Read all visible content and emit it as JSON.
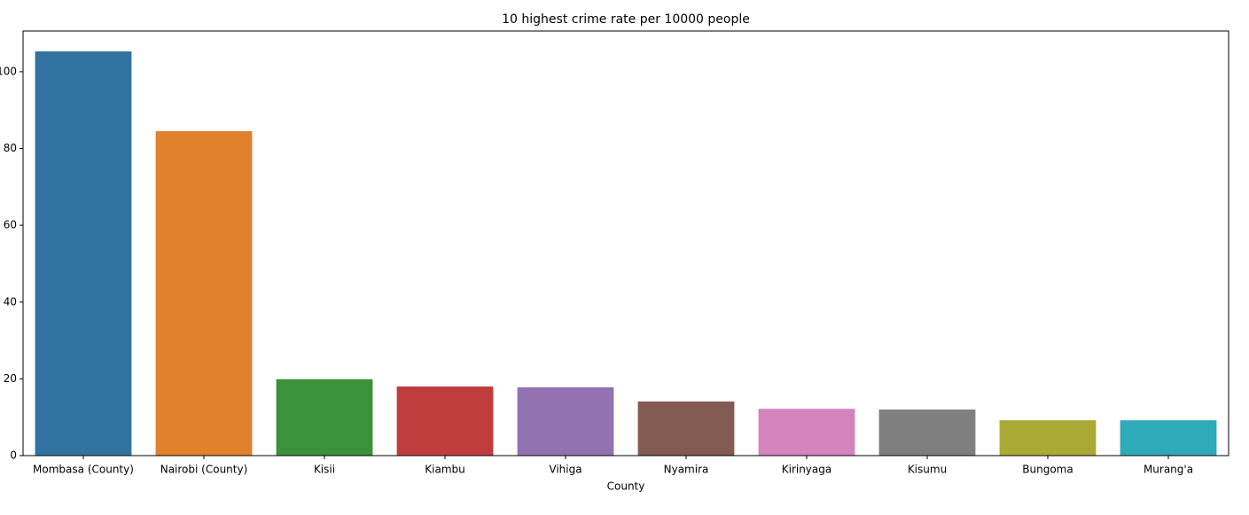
{
  "chart_data": {
    "type": "bar",
    "title": "10 highest crime rate per 10000 people",
    "x_label": "County",
    "categories": [
      "Mombasa (County)",
      "Nairobi (County)",
      "Kisii",
      "Kiambu",
      "Vihiga",
      "Nyamira",
      "Kirinyaga",
      "Kisumu",
      "Bungoma",
      "Murang'a"
    ],
    "values": [
      105.3,
      84.5,
      19.9,
      18.0,
      17.8,
      14.1,
      12.2,
      12.0,
      9.2,
      9.2
    ],
    "colors": [
      "#3274a1",
      "#e1812c",
      "#3a923a",
      "#c03d3e",
      "#9372b2",
      "#845b53",
      "#d684bd",
      "#7f7f7f",
      "#a9aa35",
      "#2eaab8"
    ],
    "ylim": [
      0,
      110.6
    ],
    "yticks": [
      0,
      20,
      40,
      60,
      80,
      100
    ],
    "grid": false
  }
}
